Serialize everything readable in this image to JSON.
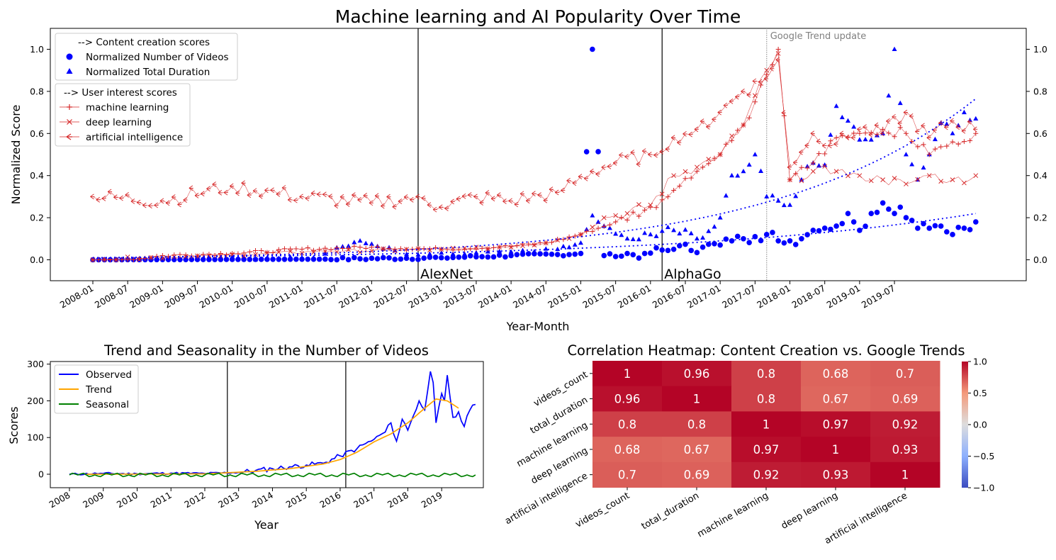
{
  "chart_data": [
    {
      "type": "line",
      "title": "Machine learning and AI Popularity Over Time",
      "xlabel": "Year-Month",
      "ylabel": "Normalized Score",
      "ylim": [
        -0.1,
        1.1
      ],
      "yticks": [
        "0.0",
        "0.2",
        "0.4",
        "0.6",
        "0.8",
        "1.0"
      ],
      "secondary_yticks": [
        "0.0",
        "0.2",
        "0.4",
        "0.6",
        "0.8",
        "1.0"
      ],
      "xticks": [
        "2008-01",
        "2008-07",
        "2009-01",
        "2009-07",
        "2010-01",
        "2010-07",
        "2011-01",
        "2011-07",
        "2012-01",
        "2012-07",
        "2013-01",
        "2013-07",
        "2014-01",
        "2014-07",
        "2015-01",
        "2015-07",
        "2016-01",
        "2016-07",
        "2017-01",
        "2017-07",
        "2018-01",
        "2018-07",
        "2019-01",
        "2019-07"
      ],
      "x_range": [
        "2008-01",
        "2019-10"
      ],
      "legend_content": {
        "title": "--> Content creation scores",
        "entries": [
          "Normalized Number of Videos",
          "Normalized Total Duration"
        ]
      },
      "legend_interest": {
        "title": "--> User interest scores",
        "entries": [
          "machine learning",
          "deep learning",
          "artificial intelligence"
        ]
      },
      "annotations": [
        {
          "label": "AlexNet",
          "x": "2012-09"
        },
        {
          "label": "AlphaGo",
          "x": "2016-03"
        },
        {
          "label": "Google Trend update",
          "x": "2017-09"
        }
      ],
      "series": [
        {
          "name": "Normalized Number of Videos",
          "color": "#0000ff",
          "marker": "circle",
          "anchors": [
            [
              0,
              0
            ],
            [
              40,
              0.003
            ],
            [
              60,
              0.01
            ],
            [
              72,
              0.02
            ],
            [
              80,
              0.025
            ],
            [
              84,
              0.03
            ],
            [
              86,
              1.0
            ],
            [
              88,
              0.02
            ],
            [
              95,
              0.03
            ],
            [
              100,
              0.05
            ],
            [
              105,
              0.06
            ],
            [
              108,
              0.07
            ],
            [
              110,
              0.09
            ],
            [
              112,
              0.1
            ],
            [
              114,
              0.11
            ],
            [
              116,
              0.12
            ],
            [
              117,
              0.13
            ],
            [
              118,
              0.09
            ],
            [
              119,
              0.08
            ],
            [
              120,
              0.09
            ],
            [
              122,
              0.1
            ],
            [
              124,
              0.14
            ],
            [
              126,
              0.15
            ],
            [
              128,
              0.16
            ],
            [
              130,
              0.22
            ],
            [
              131,
              0.18
            ],
            [
              132,
              0.14
            ],
            [
              134,
              0.22
            ],
            [
              136,
              0.27
            ],
            [
              138,
              0.22
            ],
            [
              139,
              0.25
            ],
            [
              140,
              0.2
            ],
            [
              142,
              0.15
            ],
            [
              144,
              0.15
            ],
            [
              146,
              0.16
            ],
            [
              148,
              0.12
            ],
            [
              150,
              0.15
            ],
            [
              152,
              0.18
            ]
          ]
        },
        {
          "name": "Normalized Total Duration",
          "color": "#0000ff",
          "marker": "triangle",
          "anchors": [
            [
              0,
              0
            ],
            [
              38,
              0.01
            ],
            [
              46,
              0.09
            ],
            [
              55,
              0.02
            ],
            [
              70,
              0.04
            ],
            [
              80,
              0.05
            ],
            [
              84,
              0.08
            ],
            [
              86,
              0.21
            ],
            [
              88,
              0.16
            ],
            [
              92,
              0.1
            ],
            [
              96,
              0.12
            ],
            [
              100,
              0.14
            ],
            [
              104,
              0.1
            ],
            [
              108,
              0.2
            ],
            [
              110,
              0.4
            ],
            [
              112,
              0.42
            ],
            [
              114,
              0.5
            ],
            [
              116,
              0.3
            ],
            [
              118,
              0.28
            ],
            [
              120,
              0.26
            ],
            [
              122,
              0.38
            ],
            [
              124,
              0.46
            ],
            [
              126,
              0.45
            ],
            [
              128,
              0.73
            ],
            [
              130,
              0.66
            ],
            [
              132,
              0.57
            ],
            [
              134,
              0.57
            ],
            [
              136,
              0.6
            ],
            [
              138,
              1.0
            ],
            [
              140,
              0.5
            ],
            [
              142,
              0.38
            ],
            [
              144,
              0.5
            ],
            [
              146,
              0.65
            ],
            [
              148,
              0.6
            ],
            [
              150,
              0.7
            ],
            [
              152,
              0.67
            ]
          ]
        },
        {
          "name": "machine learning",
          "color": "#d62728",
          "marker": "plus",
          "anchors": [
            [
              0,
              0
            ],
            [
              6,
              0
            ],
            [
              12,
              0.02
            ],
            [
              24,
              0.03
            ],
            [
              36,
              0.05
            ],
            [
              48,
              0.06
            ],
            [
              60,
              0.05
            ],
            [
              70,
              0.06
            ],
            [
              78,
              0.08
            ],
            [
              84,
              0.12
            ],
            [
              90,
              0.18
            ],
            [
              96,
              0.25
            ],
            [
              100,
              0.33
            ],
            [
              104,
              0.42
            ],
            [
              108,
              0.5
            ],
            [
              112,
              0.64
            ],
            [
              114,
              0.75
            ],
            [
              116,
              0.88
            ],
            [
              118,
              1.0
            ],
            [
              120,
              0.38
            ],
            [
              124,
              0.46
            ],
            [
              128,
              0.58
            ],
            [
              132,
              0.6
            ],
            [
              136,
              0.62
            ],
            [
              140,
              0.6
            ],
            [
              144,
              0.5
            ],
            [
              148,
              0.56
            ],
            [
              152,
              0.6
            ]
          ]
        },
        {
          "name": "deep learning",
          "color": "#d62728",
          "marker": "x",
          "anchors": [
            [
              0,
              0
            ],
            [
              20,
              0.02
            ],
            [
              40,
              0.04
            ],
            [
              60,
              0.05
            ],
            [
              70,
              0.06
            ],
            [
              78,
              0.08
            ],
            [
              84,
              0.12
            ],
            [
              88,
              0.2
            ],
            [
              92,
              0.22
            ],
            [
              96,
              0.26
            ],
            [
              100,
              0.4
            ],
            [
              104,
              0.44
            ],
            [
              108,
              0.5
            ],
            [
              112,
              0.64
            ],
            [
              114,
              0.78
            ],
            [
              116,
              0.9
            ],
            [
              118,
              0.98
            ],
            [
              120,
              0.38
            ],
            [
              124,
              0.42
            ],
            [
              128,
              0.42
            ],
            [
              132,
              0.4
            ],
            [
              136,
              0.38
            ],
            [
              140,
              0.36
            ],
            [
              144,
              0.4
            ],
            [
              148,
              0.38
            ],
            [
              152,
              0.4
            ]
          ]
        },
        {
          "name": "artificial intelligence",
          "color": "#d62728",
          "marker": "tri-left",
          "anchors": [
            [
              0,
              0.3
            ],
            [
              12,
              0.28
            ],
            [
              24,
              0.35
            ],
            [
              36,
              0.3
            ],
            [
              48,
              0.27
            ],
            [
              56,
              0.3
            ],
            [
              60,
              0.25
            ],
            [
              66,
              0.3
            ],
            [
              72,
              0.28
            ],
            [
              80,
              0.32
            ],
            [
              86,
              0.42
            ],
            [
              90,
              0.46
            ],
            [
              96,
              0.5
            ],
            [
              100,
              0.58
            ],
            [
              104,
              0.62
            ],
            [
              108,
              0.7
            ],
            [
              112,
              0.8
            ],
            [
              116,
              0.86
            ],
            [
              118,
              0.95
            ],
            [
              120,
              0.44
            ],
            [
              124,
              0.6
            ],
            [
              128,
              0.55
            ],
            [
              132,
              0.62
            ],
            [
              136,
              0.6
            ],
            [
              140,
              0.7
            ],
            [
              144,
              0.58
            ],
            [
              148,
              0.66
            ],
            [
              152,
              0.62
            ]
          ]
        },
        {
          "name": "trend-duration",
          "color": "#0000ff",
          "marker": "dotted",
          "curve": [
            0.01,
            0.765
          ]
        },
        {
          "name": "trend-count",
          "color": "#0000ff",
          "marker": "dotted",
          "curve": [
            0.01,
            0.22
          ]
        }
      ]
    },
    {
      "type": "line",
      "title": "Trend and Seasonality in the Number of Videos",
      "xlabel": "Year",
      "ylabel": "Scores",
      "ylim": [
        -35,
        310
      ],
      "yticks": [
        "0",
        "100",
        "200",
        "300"
      ],
      "xticks": [
        "2008",
        "2009",
        "2010",
        "2011",
        "2012",
        "2013",
        "2014",
        "2015",
        "2016",
        "2017",
        "2018",
        "2019"
      ],
      "legend": [
        "Observed",
        "Trend",
        "Seasonal"
      ],
      "vlines": [
        "2012-09",
        "2016-03"
      ],
      "series": [
        {
          "name": "Observed",
          "color": "#0000ff",
          "anchors": [
            [
              0,
              0
            ],
            [
              12,
              2
            ],
            [
              24,
              1
            ],
            [
              36,
              3
            ],
            [
              48,
              2
            ],
            [
              60,
              5
            ],
            [
              66,
              10
            ],
            [
              72,
              15
            ],
            [
              78,
              20
            ],
            [
              84,
              25
            ],
            [
              90,
              30
            ],
            [
              96,
              50
            ],
            [
              102,
              70
            ],
            [
              108,
              95
            ],
            [
              112,
              115
            ],
            [
              114,
              140
            ],
            [
              116,
              90
            ],
            [
              118,
              150
            ],
            [
              120,
              120
            ],
            [
              122,
              160
            ],
            [
              124,
              200
            ],
            [
              126,
              175
            ],
            [
              128,
              280
            ],
            [
              129,
              250
            ],
            [
              130,
              140
            ],
            [
              132,
              220
            ],
            [
              133,
              200
            ],
            [
              134,
              270
            ],
            [
              136,
              155
            ],
            [
              138,
              170
            ],
            [
              140,
              130
            ],
            [
              142,
              175
            ],
            [
              144,
              190
            ]
          ]
        },
        {
          "name": "Trend",
          "color": "#ffa500",
          "anchors": [
            [
              6,
              0
            ],
            [
              48,
              1
            ],
            [
              66,
              8
            ],
            [
              78,
              15
            ],
            [
              90,
              28
            ],
            [
              96,
              40
            ],
            [
              102,
              60
            ],
            [
              108,
              88
            ],
            [
              114,
              110
            ],
            [
              120,
              140
            ],
            [
              126,
              180
            ],
            [
              130,
              205
            ],
            [
              134,
              200
            ],
            [
              138,
              180
            ]
          ]
        },
        {
          "name": "Seasonal",
          "color": "#008000",
          "amplitude": 6
        }
      ]
    },
    {
      "type": "heatmap",
      "title": "Correlation Heatmap: Content Creation vs. Google Trends",
      "rows": [
        "videos_count",
        "total_duration",
        "machine learning",
        "deep learning",
        "artificial intelligence"
      ],
      "cols": [
        "videos_count",
        "total_duration",
        "machine learning",
        "deep learning",
        "artificial intelligence"
      ],
      "values": [
        [
          1,
          0.96,
          0.8,
          0.68,
          0.7
        ],
        [
          0.96,
          1,
          0.8,
          0.67,
          0.69
        ],
        [
          0.8,
          0.8,
          1,
          0.97,
          0.92
        ],
        [
          0.68,
          0.67,
          0.97,
          1,
          0.93
        ],
        [
          0.7,
          0.69,
          0.92,
          0.93,
          1
        ]
      ],
      "colorbar_ticks": [
        "1.0",
        "0.5",
        "0.0",
        "−0.5",
        "−1.0"
      ],
      "colormap": "coolwarm",
      "vmin": -1,
      "vmax": 1
    }
  ]
}
